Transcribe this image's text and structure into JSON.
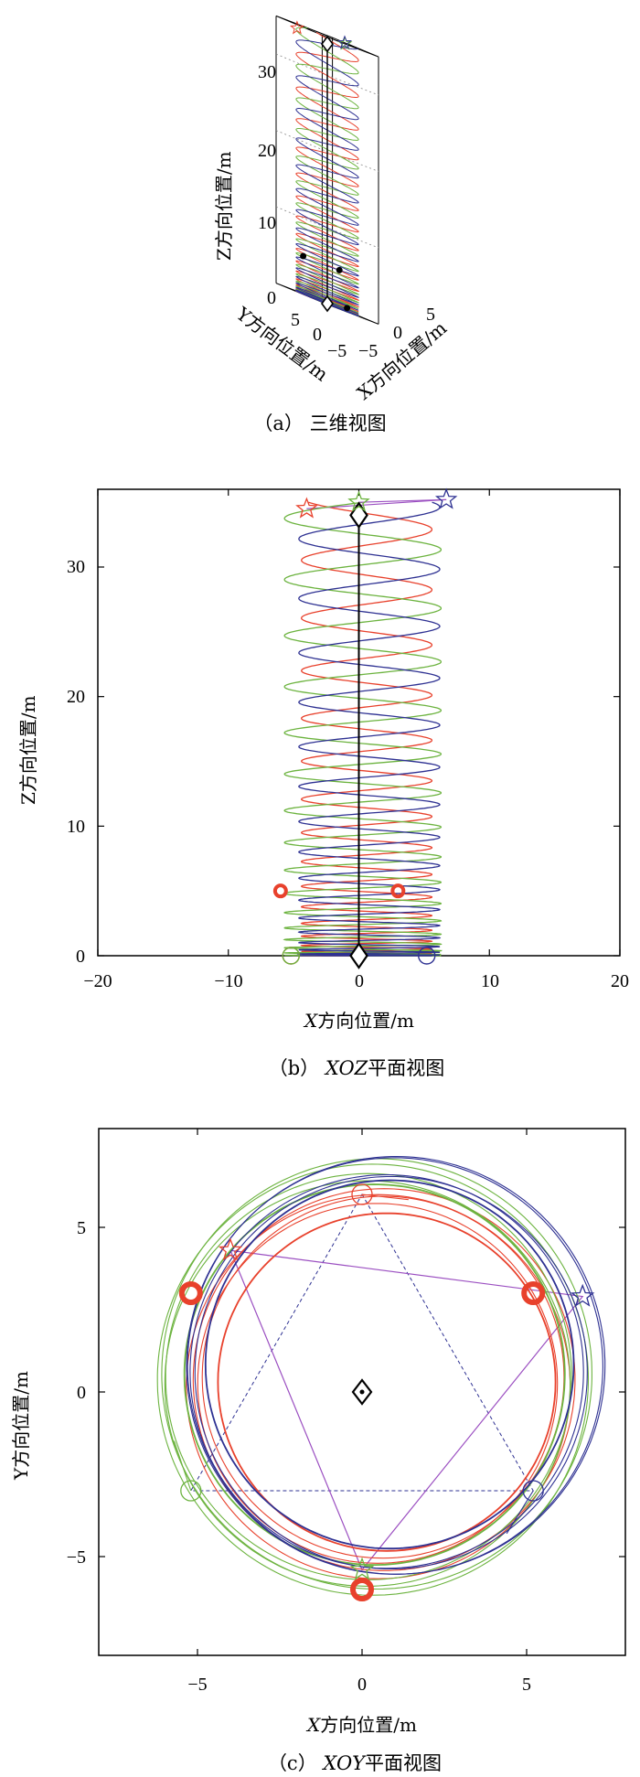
{
  "panels": {
    "a": {
      "caption": "（a） 三维视图",
      "zlabel": "Z方向位置/m",
      "ylabel": "Y方向位置/m",
      "xlabel": "X方向位置/m",
      "zticks": [
        "0",
        "10",
        "20",
        "30"
      ],
      "yticks": [
        "5",
        "0",
        "−5"
      ],
      "xticks": [
        "−5",
        "0",
        "5"
      ]
    },
    "b": {
      "caption_prefix": "（b） ",
      "caption_italic": "XOZ",
      "caption_suffix": "平面视图",
      "xlabel_italic": "X",
      "xlabel_rest": "方向位置/m",
      "ylabel": "Z方向位置/m",
      "xticks": [
        "−20",
        "−10",
        "0",
        "10",
        "20"
      ],
      "yticks": [
        "0",
        "10",
        "20",
        "30"
      ]
    },
    "c": {
      "caption_prefix": "（c） ",
      "caption_italic": "XOY",
      "caption_suffix": "平面视图",
      "xlabel_italic": "X",
      "xlabel_rest": "方向位置/m",
      "ylabel": "Y方向位置/m",
      "xticks": [
        "−5",
        "0",
        "5"
      ],
      "yticks": [
        "−5",
        "0",
        "5"
      ]
    }
  },
  "colors": {
    "red": "#e8412c",
    "green": "#6cb33f",
    "blue": "#2e3192",
    "purple": "#9b4fc1",
    "black": "#000000"
  },
  "chart_data": [
    {
      "panel": "a",
      "type": "line3d",
      "xlim": [
        -7,
        7
      ],
      "ylim": [
        -7,
        7
      ],
      "zlim": [
        0,
        35
      ],
      "leader": {
        "start": [
          0,
          0,
          0
        ],
        "end": [
          0,
          0,
          34
        ]
      },
      "series": [
        {
          "color": "red",
          "center": [
            0,
            0
          ],
          "radius": 6.0,
          "start_angle_deg": 210,
          "end_point": [
            -4,
            4.3,
            34.5
          ]
        },
        {
          "color": "green",
          "center": [
            0,
            0
          ],
          "radius": 6.0,
          "start_angle_deg": 90,
          "end_point": [
            0,
            -5.4,
            35
          ]
        },
        {
          "color": "blue",
          "center": [
            0,
            0
          ],
          "radius": 6.0,
          "start_angle_deg": 330,
          "end_point": [
            6.7,
            2.9,
            35
          ]
        }
      ]
    },
    {
      "panel": "b",
      "type": "line",
      "xlim": [
        -20,
        20
      ],
      "ylim": [
        0,
        36
      ],
      "xticks": [
        -20,
        -10,
        0,
        10,
        20
      ],
      "yticks": [
        0,
        10,
        20,
        30
      ],
      "leader_line": {
        "x": 0,
        "z_start": 0,
        "z_end": 34
      },
      "diamonds": [
        {
          "x": 0,
          "z": 0
        },
        {
          "x": 0,
          "z": 34
        }
      ],
      "series": [
        {
          "color": "red",
          "center_x": 0.6,
          "amplitude": 5.0,
          "start_marker": {
            "x": -5.2,
            "z": 0
          },
          "end_marker": {
            "x": -4.0,
            "z": 34.5
          }
        },
        {
          "color": "green",
          "center_x": 0.3,
          "amplitude": 6.0,
          "start_marker": {
            "x": -5.2,
            "z": 0
          },
          "end_marker": {
            "x": 0.0,
            "z": 35.0
          }
        },
        {
          "color": "blue",
          "center_x": 0.8,
          "amplitude": 5.4,
          "start_marker": {
            "x": 5.2,
            "z": 0
          },
          "end_marker": {
            "x": 6.7,
            "z": 35.2
          }
        }
      ],
      "obstacles": [
        {
          "x": -6,
          "z": 5
        },
        {
          "x": 3,
          "z": 5
        }
      ]
    },
    {
      "panel": "c",
      "type": "line",
      "xlim": [
        -8,
        8
      ],
      "ylim": [
        -8,
        8
      ],
      "xticks": [
        -5,
        0,
        5
      ],
      "yticks": [
        -5,
        0,
        5
      ],
      "center_diamond": {
        "x": 0,
        "y": 0
      },
      "start_triangle": [
        {
          "x": 0,
          "y": 6
        },
        {
          "x": 5.2,
          "y": -3
        },
        {
          "x": -5.2,
          "y": -3
        }
      ],
      "end_triangle": [
        {
          "x": -4.0,
          "y": 4.3
        },
        {
          "x": 6.7,
          "y": 2.9
        },
        {
          "x": 0.0,
          "y": -5.4
        }
      ],
      "series": [
        {
          "color": "red",
          "center": [
            0.6,
            0.3
          ],
          "radius": 5.6,
          "start": {
            "x": 0,
            "y": 6
          },
          "end": {
            "x": -4.0,
            "y": 4.3
          }
        },
        {
          "color": "green",
          "center": [
            0.3,
            0.4
          ],
          "radius": 6.3,
          "start": {
            "x": -5.2,
            "y": -3
          },
          "end": {
            "x": 0.0,
            "y": -5.4
          }
        },
        {
          "color": "blue",
          "center": [
            0.9,
            0.7
          ],
          "radius": 6.1,
          "start": {
            "x": 5.2,
            "y": -3
          },
          "end": {
            "x": 6.7,
            "y": 2.9
          }
        }
      ],
      "obstacles": [
        {
          "x": -5.2,
          "y": 3
        },
        {
          "x": 5.2,
          "y": 3
        },
        {
          "x": 0,
          "y": -6
        }
      ]
    }
  ]
}
